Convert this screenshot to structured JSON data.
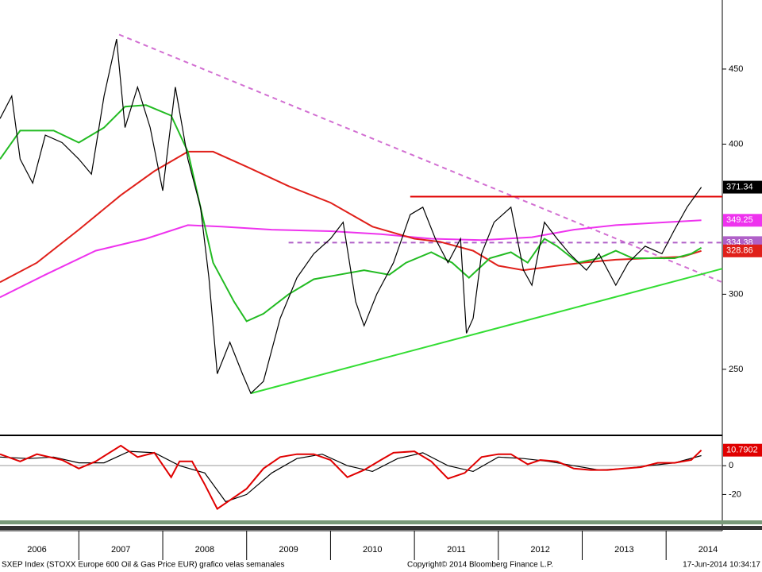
{
  "chart_data": [
    {
      "type": "line",
      "xlim": [
        2006.06,
        2014.67
      ],
      "ylim": [
        206,
        496
      ],
      "yticks": [
        250,
        300,
        400,
        450
      ],
      "series": [
        {
          "color": "#d26fd2",
          "dash": true,
          "x": [
            2007.48,
            2014.67
          ],
          "values": [
            473,
            308
          ]
        },
        {
          "color": "#b060c8",
          "dash": true,
          "tag": true,
          "x": [
            2009.5,
            2014.67
          ],
          "values": [
            334.38,
            334.38
          ]
        },
        {
          "color": "#e00000",
          "x": [
            2010.95,
            2014.67
          ],
          "values": [
            365,
            365
          ]
        },
        {
          "color": "#33dd33",
          "x": [
            2009.05,
            2014.67
          ],
          "values": [
            234,
            317
          ]
        },
        {
          "color": "#ee33ee",
          "tag": true,
          "x": [
            2006.06,
            2006.6,
            2007.2,
            2007.8,
            2008.3,
            2008.7,
            2009.3,
            2010.0,
            2010.6,
            2011.2,
            2011.8,
            2012.4,
            2012.9,
            2013.4,
            2014.0,
            2014.42
          ],
          "values": [
            298,
            313,
            329,
            337,
            346,
            345,
            343,
            342,
            340,
            337,
            336,
            338,
            343,
            346,
            348,
            349.25
          ]
        },
        {
          "color": "#e0201a",
          "tag": true,
          "x": [
            2006.06,
            2006.5,
            2007.0,
            2007.5,
            2007.9,
            2008.3,
            2008.6,
            2009.0,
            2009.5,
            2010.0,
            2010.5,
            2011.0,
            2011.3,
            2011.7,
            2012.0,
            2012.3,
            2012.7,
            2013.0,
            2013.4,
            2013.8,
            2014.2,
            2014.42
          ],
          "values": [
            308,
            321,
            343,
            366,
            382,
            395,
            395,
            385,
            372,
            361,
            345,
            337,
            335,
            329,
            319,
            316,
            319,
            321,
            323,
            324,
            325,
            328.86
          ]
        },
        {
          "color": "#22bb22",
          "x": [
            2006.06,
            2006.3,
            2006.7,
            2007.0,
            2007.3,
            2007.55,
            2007.8,
            2008.1,
            2008.3,
            2008.45,
            2008.6,
            2008.85,
            2009.0,
            2009.2,
            2009.5,
            2009.8,
            2010.1,
            2010.4,
            2010.7,
            2010.9,
            2011.2,
            2011.45,
            2011.65,
            2011.9,
            2012.15,
            2012.35,
            2012.55,
            2012.7,
            2012.95,
            2013.2,
            2013.4,
            2013.6,
            2013.9,
            2014.1,
            2014.3,
            2014.42
          ],
          "values": [
            390,
            409,
            409,
            401,
            411,
            425,
            426,
            419,
            395,
            358,
            321,
            295,
            282,
            287,
            300,
            310,
            313,
            316,
            313,
            321,
            328,
            321,
            311,
            324,
            328,
            321,
            337,
            332,
            321,
            324,
            329,
            324,
            324,
            324,
            327,
            331
          ]
        },
        {
          "color": "#000000",
          "tag": true,
          "tag_color": "#000000",
          "x": [
            2006.06,
            2006.2,
            2006.3,
            2006.45,
            2006.6,
            2006.8,
            2007.0,
            2007.15,
            2007.3,
            2007.45,
            2007.55,
            2007.7,
            2007.85,
            2008.0,
            2008.15,
            2008.3,
            2008.45,
            2008.55,
            2008.65,
            2008.8,
            2008.95,
            2009.05,
            2009.2,
            2009.4,
            2009.6,
            2009.8,
            2010.0,
            2010.15,
            2010.3,
            2010.4,
            2010.55,
            2010.75,
            2010.95,
            2011.1,
            2011.25,
            2011.4,
            2011.55,
            2011.62,
            2011.7,
            2011.8,
            2011.95,
            2012.15,
            2012.3,
            2012.4,
            2012.55,
            2012.7,
            2012.85,
            2013.05,
            2013.2,
            2013.4,
            2013.55,
            2013.75,
            2013.95,
            2014.1,
            2014.25,
            2014.42
          ],
          "values": [
            417,
            432,
            390,
            374,
            406,
            401,
            390,
            380,
            432,
            470,
            411,
            438,
            411,
            369,
            438,
            390,
            358,
            311,
            247,
            268,
            247,
            234,
            242,
            284,
            311,
            327,
            337,
            348,
            295,
            279,
            300,
            321,
            353,
            358,
            337,
            321,
            337,
            274,
            284,
            327,
            348,
            358,
            316,
            306,
            348,
            337,
            327,
            316,
            327,
            306,
            321,
            332,
            327,
            343,
            358,
            371.34
          ]
        }
      ]
    },
    {
      "type": "line",
      "xlim": [
        2006.06,
        2014.67
      ],
      "ylim": [
        -38,
        20
      ],
      "yticks": [
        0,
        -20
      ],
      "xticks": [
        {
          "value": 2006.5,
          "label": "2006"
        },
        {
          "value": 2007.5,
          "label": "2007"
        },
        {
          "value": 2008.5,
          "label": "2008"
        },
        {
          "value": 2009.5,
          "label": "2009"
        },
        {
          "value": 2010.5,
          "label": "2010"
        },
        {
          "value": 2011.5,
          "label": "2011"
        },
        {
          "value": 2012.5,
          "label": "2012"
        },
        {
          "value": 2013.5,
          "label": "2013"
        },
        {
          "value": 2014.5,
          "label": "2014"
        }
      ],
      "series": [
        {
          "color": "#000000",
          "x": [
            2006.06,
            2006.4,
            2006.7,
            2007.0,
            2007.3,
            2007.6,
            2007.9,
            2008.2,
            2008.5,
            2008.75,
            2009.0,
            2009.3,
            2009.6,
            2009.9,
            2010.2,
            2010.5,
            2010.8,
            2011.1,
            2011.4,
            2011.7,
            2012.0,
            2012.3,
            2012.6,
            2012.9,
            2013.2,
            2013.5,
            2013.8,
            2014.1,
            2014.42
          ],
          "values": [
            6,
            5,
            6,
            2,
            2,
            10,
            9,
            0,
            -5,
            -25,
            -20,
            -5,
            5,
            8,
            0,
            -4,
            5,
            9,
            0,
            -4,
            6,
            5,
            3,
            0,
            -3,
            -2,
            0,
            2,
            7
          ]
        },
        {
          "color": "#e00000",
          "tag": true,
          "x": [
            2006.06,
            2006.3,
            2006.5,
            2006.8,
            2007.0,
            2007.2,
            2007.5,
            2007.7,
            2007.9,
            2008.1,
            2008.2,
            2008.35,
            2008.5,
            2008.65,
            2008.8,
            2009.0,
            2009.2,
            2009.4,
            2009.6,
            2009.8,
            2010.0,
            2010.2,
            2010.4,
            2010.6,
            2010.75,
            2011.0,
            2011.2,
            2011.4,
            2011.6,
            2011.8,
            2012.0,
            2012.15,
            2012.35,
            2012.5,
            2012.7,
            2012.9,
            2013.1,
            2013.3,
            2013.5,
            2013.7,
            2013.9,
            2014.1,
            2014.3,
            2014.42
          ],
          "values": [
            8,
            3,
            8,
            4,
            -2,
            3,
            14,
            6,
            9,
            -8,
            3,
            3,
            -13,
            -30,
            -24,
            -16,
            -2,
            6,
            8,
            8,
            4,
            -8,
            -3,
            4,
            9,
            10,
            3,
            -9,
            -5,
            6,
            8,
            8,
            1,
            4,
            3,
            -2,
            -3,
            -3,
            -2,
            -1,
            2,
            2,
            4,
            10.7902
          ]
        }
      ]
    }
  ],
  "footer": {
    "left": "SXEP Index (STOXX Europe 600 Oil & Gas Price EUR) grafico velas semanales",
    "center": "Copyright© 2014 Bloomberg Finance L.P.",
    "right": "17-Jun-2014 10:34:17"
  }
}
